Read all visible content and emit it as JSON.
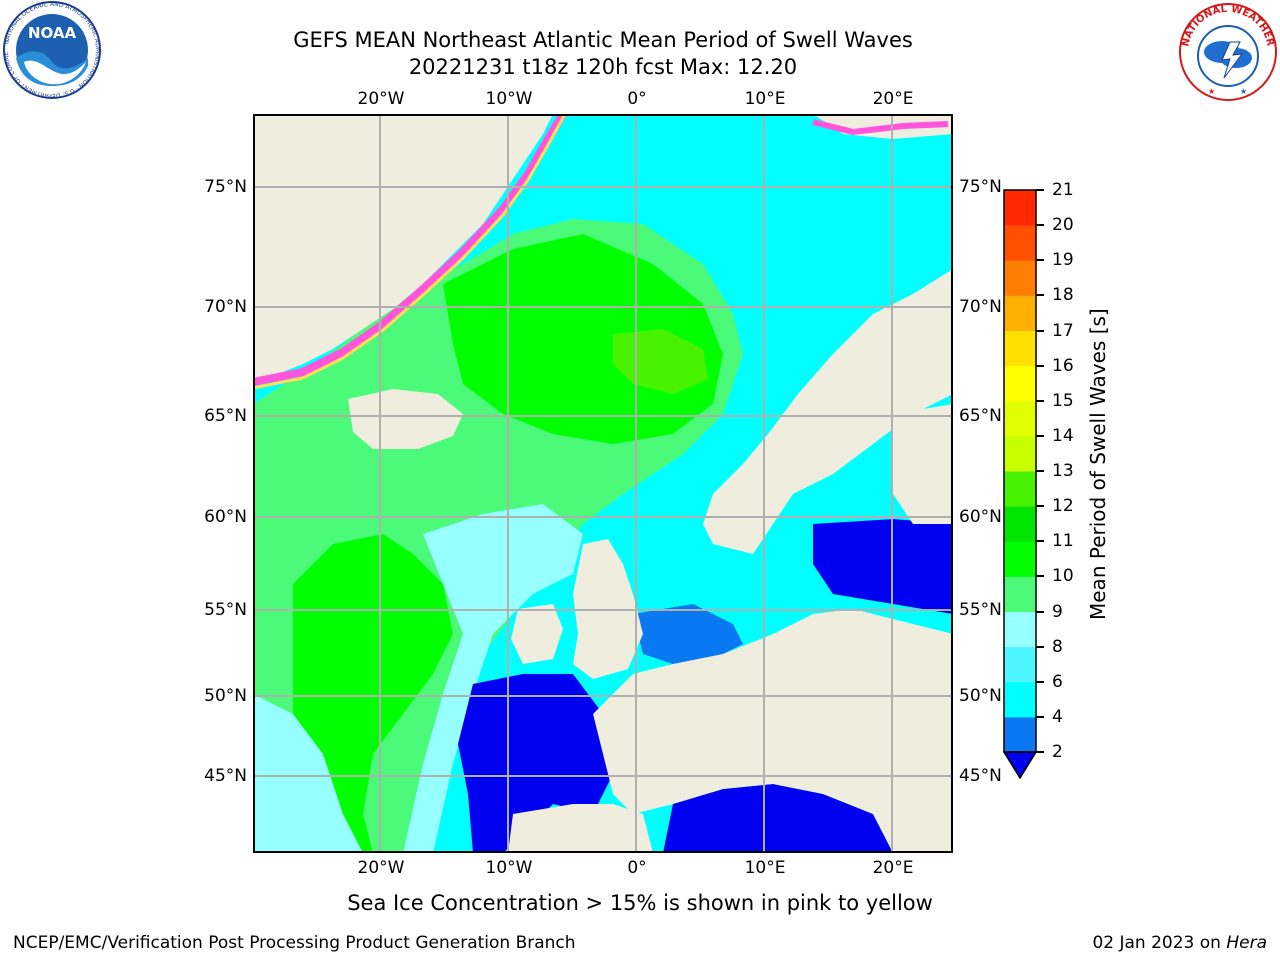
{
  "title": {
    "line1": "GEFS MEAN Northeast Atlantic Mean Period of Swell Waves",
    "line2": "20221231 t18z 120h fcst   Max: 12.20"
  },
  "map": {
    "lon_ticks": [
      "20°W",
      "10°W",
      "0°",
      "10°E",
      "20°E"
    ],
    "lat_ticks": [
      "75°N",
      "70°N",
      "65°N",
      "60°N",
      "55°N",
      "50°N",
      "45°N"
    ],
    "field_colors": {
      "open_ocean_green": "#00ff00",
      "light_green": "#4cfa7a",
      "pale_cyan": "#96ffff",
      "cyan": "#00ffff",
      "mid_blue": "#0a78f0",
      "deep_blue": "#0000f0",
      "land": "#efedde",
      "sea_ice_pink": "#ff00ff",
      "sea_ice_yellow": "#ffff00"
    }
  },
  "colorbar": {
    "label": "Mean Period of Swell Waves [s]",
    "ticks": [
      "2",
      "4",
      "6",
      "8",
      "9",
      "10",
      "11",
      "12",
      "13",
      "14",
      "15",
      "16",
      "17",
      "18",
      "19",
      "20",
      "21"
    ],
    "colors": [
      "#0a78f0",
      "#00ffff",
      "#4cf5ff",
      "#96ffff",
      "#4cfa7a",
      "#00ff00",
      "#00e600",
      "#49f200",
      "#c8ff00",
      "#e1ff00",
      "#ffff00",
      "#ffe100",
      "#ffaf00",
      "#ff8000",
      "#ff5000",
      "#ff2800"
    ],
    "extend_min_color": "#0000f0"
  },
  "caption": "Sea Ice Concentration > 15% is shown in pink to yellow",
  "footer": {
    "left": "NCEP/EMC/Verification Post Processing Product Generation Branch",
    "date": "02 Jan 2023 on ",
    "host": "Hera"
  },
  "logos": {
    "noaa": {
      "name": "NOAA",
      "ring": "NATIONAL OCEANIC AND ATMOSPHERIC ADMINISTRATION · U.S. DEPARTMENT OF COMMERCE"
    },
    "nws": {
      "ring": "NATIONAL WEATHER SERVICE"
    }
  }
}
